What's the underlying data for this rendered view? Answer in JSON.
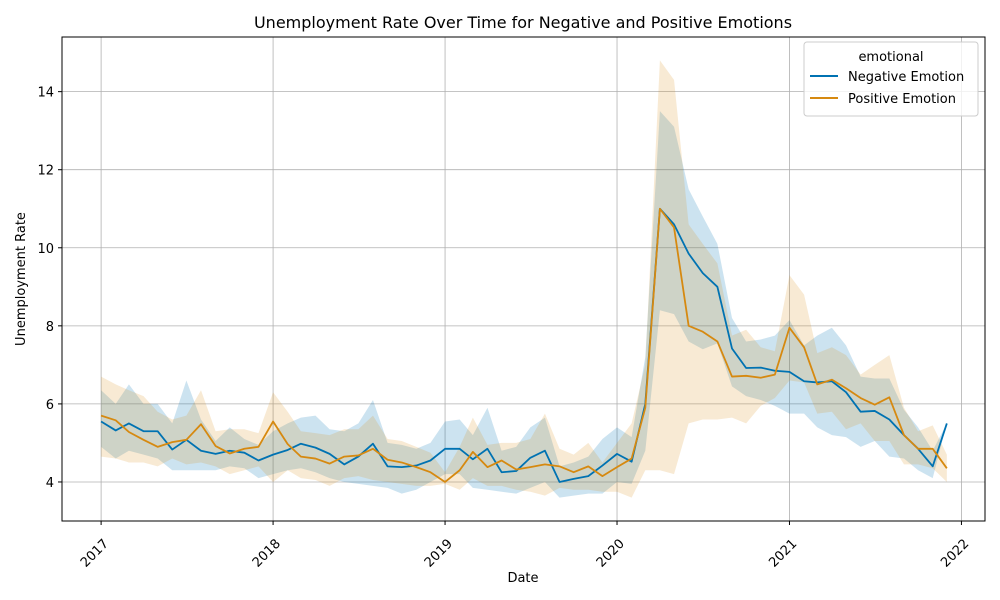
{
  "chart_data": {
    "type": "line",
    "title": "Unemployment Rate Over Time for Negative and Positive Emotions",
    "xlabel": "Date",
    "ylabel": "Unemployment Rate",
    "x_ticks": [
      "2017",
      "2018",
      "2019",
      "2020",
      "2021",
      "2022"
    ],
    "y_ticks": [
      4,
      6,
      8,
      10,
      12,
      14
    ],
    "xlim": [
      "2016-10-10",
      "2022-02-20"
    ],
    "ylim": [
      3.0,
      15.4
    ],
    "grid": true,
    "legend": {
      "title": "emotional",
      "position": "top-right"
    },
    "series": [
      {
        "name": "Negative Emotion",
        "color": "#0072B2",
        "x": [
          "2017-01",
          "2017-02",
          "2017-03",
          "2017-04",
          "2017-05",
          "2017-06",
          "2017-07",
          "2017-08",
          "2017-09",
          "2017-10",
          "2017-11",
          "2017-12",
          "2018-01",
          "2018-02",
          "2018-03",
          "2018-04",
          "2018-05",
          "2018-06",
          "2018-07",
          "2018-08",
          "2018-09",
          "2018-10",
          "2018-11",
          "2018-12",
          "2019-01",
          "2019-02",
          "2019-03",
          "2019-04",
          "2019-05",
          "2019-06",
          "2019-07",
          "2019-08",
          "2019-09",
          "2019-10",
          "2019-11",
          "2019-12",
          "2020-01",
          "2020-02",
          "2020-03",
          "2020-04",
          "2020-05",
          "2020-06",
          "2020-07",
          "2020-08",
          "2020-09",
          "2020-10",
          "2020-11",
          "2020-12",
          "2021-01",
          "2021-02",
          "2021-03",
          "2021-04",
          "2021-05",
          "2021-06",
          "2021-07",
          "2021-08",
          "2021-09",
          "2021-10",
          "2021-11",
          "2021-12"
        ],
        "values": [
          5.55,
          5.32,
          5.5,
          5.3,
          5.3,
          4.83,
          5.08,
          4.8,
          4.72,
          4.8,
          4.75,
          4.55,
          4.7,
          4.82,
          4.98,
          4.88,
          4.72,
          4.45,
          4.65,
          4.98,
          4.4,
          4.38,
          4.42,
          4.55,
          4.85,
          4.85,
          4.58,
          4.85,
          4.25,
          4.28,
          4.62,
          4.8,
          4.0,
          4.08,
          4.15,
          4.42,
          4.72,
          4.52,
          6.0,
          11.0,
          10.6,
          9.85,
          9.35,
          9.0,
          7.42,
          6.92,
          6.93,
          6.85,
          6.82,
          6.58,
          6.55,
          6.58,
          6.3,
          5.8,
          5.82,
          5.6,
          5.2,
          4.85,
          4.4,
          5.5
        ],
        "lower": [
          4.9,
          4.6,
          4.8,
          4.7,
          4.6,
          4.3,
          4.3,
          4.3,
          4.3,
          4.4,
          4.35,
          4.1,
          4.2,
          4.3,
          4.35,
          4.25,
          4.1,
          4.0,
          3.95,
          3.9,
          3.85,
          3.7,
          3.8,
          4.0,
          4.2,
          4.2,
          3.85,
          3.8,
          3.75,
          3.7,
          3.85,
          4.0,
          3.6,
          3.65,
          3.7,
          3.7,
          4.0,
          3.95,
          4.8,
          8.4,
          8.3,
          7.6,
          7.4,
          7.55,
          6.45,
          6.2,
          6.1,
          5.95,
          5.75,
          5.75,
          5.4,
          5.2,
          5.15,
          4.9,
          5.05,
          4.65,
          4.6,
          4.3,
          4.1,
          5.5
        ],
        "upper": [
          6.35,
          6.0,
          6.5,
          6.0,
          6.0,
          5.5,
          6.6,
          5.6,
          5.05,
          5.4,
          5.1,
          4.95,
          5.3,
          5.5,
          5.65,
          5.7,
          5.35,
          5.3,
          5.5,
          6.1,
          5.0,
          4.95,
          4.85,
          5.0,
          5.55,
          5.6,
          5.2,
          5.9,
          4.8,
          4.9,
          5.4,
          5.65,
          4.4,
          4.5,
          4.65,
          5.1,
          5.4,
          5.15,
          7.2,
          13.5,
          13.1,
          11.5,
          10.8,
          10.1,
          8.2,
          7.6,
          7.65,
          7.75,
          8.15,
          7.5,
          7.75,
          7.95,
          7.5,
          6.7,
          6.65,
          6.65,
          5.85,
          5.4,
          4.8,
          5.5
        ]
      },
      {
        "name": "Positive Emotion",
        "color": "#D68910",
        "x": [
          "2017-01",
          "2017-02",
          "2017-03",
          "2017-04",
          "2017-05",
          "2017-06",
          "2017-07",
          "2017-08",
          "2017-09",
          "2017-10",
          "2017-11",
          "2017-12",
          "2018-01",
          "2018-02",
          "2018-03",
          "2018-04",
          "2018-05",
          "2018-06",
          "2018-07",
          "2018-08",
          "2018-09",
          "2018-10",
          "2018-11",
          "2018-12",
          "2019-01",
          "2019-02",
          "2019-03",
          "2019-04",
          "2019-05",
          "2019-06",
          "2019-07",
          "2019-08",
          "2019-09",
          "2019-10",
          "2019-11",
          "2019-12",
          "2020-01",
          "2020-02",
          "2020-03",
          "2020-04",
          "2020-05",
          "2020-06",
          "2020-07",
          "2020-08",
          "2020-09",
          "2020-10",
          "2020-11",
          "2020-12",
          "2021-01",
          "2021-02",
          "2021-03",
          "2021-04",
          "2021-05",
          "2021-06",
          "2021-07",
          "2021-08",
          "2021-09",
          "2021-10",
          "2021-11",
          "2021-12"
        ],
        "values": [
          5.7,
          5.58,
          5.28,
          5.08,
          4.9,
          5.02,
          5.08,
          5.48,
          4.92,
          4.73,
          4.85,
          4.9,
          5.55,
          4.97,
          4.65,
          4.6,
          4.47,
          4.65,
          4.68,
          4.85,
          4.57,
          4.5,
          4.38,
          4.25,
          4.0,
          4.3,
          4.77,
          4.38,
          4.55,
          4.32,
          4.38,
          4.45,
          4.4,
          4.25,
          4.4,
          4.15,
          4.38,
          4.6,
          5.9,
          11.0,
          10.52,
          8.0,
          7.85,
          7.6,
          6.7,
          6.72,
          6.67,
          6.75,
          7.95,
          7.45,
          6.5,
          6.62,
          6.4,
          6.15,
          5.98,
          6.17,
          5.2,
          4.85,
          4.85,
          4.35
        ],
        "lower": [
          4.65,
          4.6,
          4.5,
          4.5,
          4.4,
          4.6,
          4.45,
          4.5,
          4.4,
          4.2,
          4.3,
          4.4,
          4.0,
          4.3,
          4.1,
          4.05,
          3.9,
          4.1,
          4.15,
          4.05,
          4.0,
          3.95,
          3.9,
          3.9,
          3.95,
          3.8,
          4.1,
          3.9,
          3.9,
          3.8,
          3.75,
          3.65,
          3.85,
          3.8,
          3.8,
          3.75,
          3.75,
          3.6,
          4.3,
          4.3,
          4.2,
          5.5,
          5.6,
          5.6,
          5.65,
          5.5,
          5.95,
          6.15,
          6.6,
          6.55,
          5.75,
          5.8,
          5.35,
          5.5,
          5.05,
          5.05,
          4.45,
          4.45,
          4.35,
          4.0
        ],
        "upper": [
          6.7,
          6.5,
          6.35,
          6.2,
          5.8,
          5.6,
          5.7,
          6.35,
          5.3,
          5.35,
          5.35,
          5.25,
          6.3,
          5.8,
          5.3,
          5.25,
          5.2,
          5.35,
          5.35,
          5.7,
          5.1,
          5.05,
          4.9,
          4.75,
          4.25,
          4.9,
          5.65,
          4.95,
          5.0,
          5.0,
          5.1,
          5.75,
          4.85,
          4.7,
          5.0,
          4.5,
          5.0,
          5.5,
          7.0,
          14.8,
          14.3,
          10.6,
          10.1,
          9.6,
          7.75,
          7.9,
          7.45,
          7.35,
          9.3,
          8.8,
          7.3,
          7.45,
          7.25,
          6.75,
          7.0,
          7.25,
          5.9,
          5.3,
          5.45,
          4.7
        ]
      }
    ]
  }
}
